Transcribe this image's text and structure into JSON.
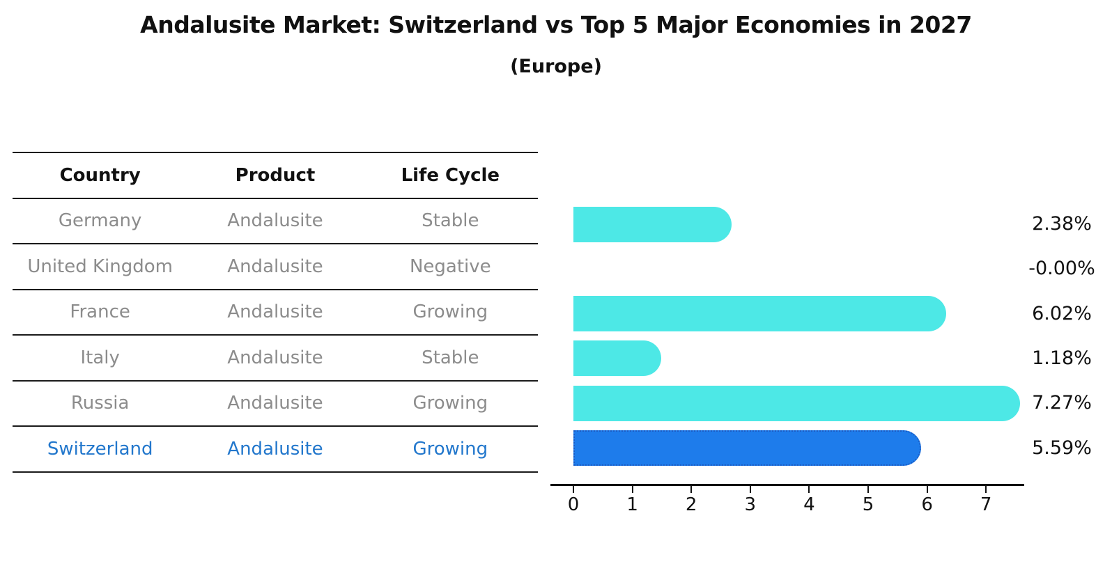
{
  "header": {
    "title": "Andalusite Market: Switzerland vs Top 5 Major Economies in 2027",
    "subtitle": "(Europe)"
  },
  "table": {
    "columns": [
      "Country",
      "Product",
      "Life Cycle"
    ],
    "rows": [
      {
        "country": "Germany",
        "product": "Andalusite",
        "life_cycle": "Stable",
        "highlighted": false
      },
      {
        "country": "United Kingdom",
        "product": "Andalusite",
        "life_cycle": "Negative",
        "highlighted": false
      },
      {
        "country": "France",
        "product": "Andalusite",
        "life_cycle": "Growing",
        "highlighted": false
      },
      {
        "country": "Italy",
        "product": "Andalusite",
        "life_cycle": "Stable",
        "highlighted": false
      },
      {
        "country": "Russia",
        "product": "Andalusite",
        "life_cycle": "Growing",
        "highlighted": false
      },
      {
        "country": "Switzerland",
        "product": "Andalusite",
        "life_cycle": "Growing",
        "highlighted": true
      }
    ]
  },
  "chart_data": {
    "type": "bar",
    "orientation": "horizontal",
    "title": "Andalusite Market: Switzerland vs Top 5 Major Economies in 2027 (Europe)",
    "categories": [
      "Germany",
      "United Kingdom",
      "France",
      "Italy",
      "Russia",
      "Switzerland"
    ],
    "values": [
      2.38,
      -0.0,
      6.02,
      1.18,
      7.27,
      5.59
    ],
    "value_labels": [
      "2.38%",
      "-0.00%",
      "6.02%",
      "1.18%",
      "7.27%",
      "5.59%"
    ],
    "x_ticks": [
      "0",
      "1",
      "2",
      "3",
      "4",
      "5",
      "6",
      "7"
    ],
    "xlim": [
      0,
      7.65
    ],
    "grid": false,
    "legend": "none",
    "bar_color": "#4DE8E6",
    "highlight_bar_color": "#1E7CEB",
    "highlight_border_color": "#1A5BC4",
    "highlighted_category": "Switzerland"
  },
  "colors": {
    "background": "#FFFFFF",
    "text_primary": "#111111",
    "text_muted": "#8C8C8C",
    "highlight_text": "#2277CC",
    "divider": "#1A1A1A",
    "axis": "#111111"
  }
}
